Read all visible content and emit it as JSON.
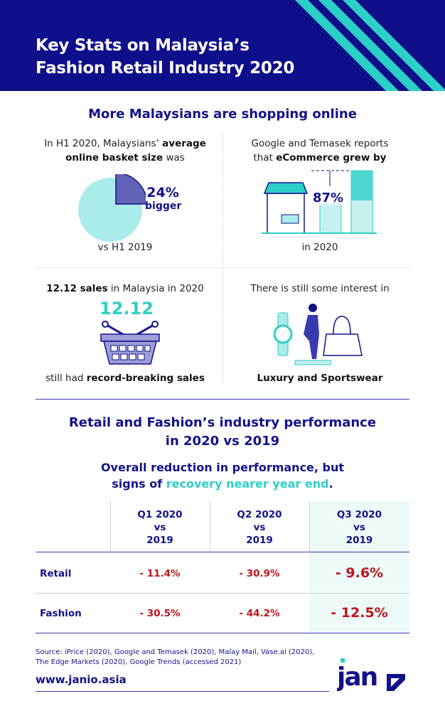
{
  "header": {
    "title_line1": "Key Stats on Malaysia’s",
    "title_line2": "Fashion Retail Industry 2020"
  },
  "section1": {
    "title": "More Malaysians are shopping online",
    "basket": {
      "pre": "In H1 2020, Malaysians’ ",
      "bold1": "average",
      "bold2": "online basket size",
      "post": " was",
      "stat": "24%",
      "stat_label": "bigger",
      "foot": "vs H1 2019",
      "pie_percent": 24
    },
    "ecommerce": {
      "line1": "Google and Temasek reports",
      "pre": "that ",
      "bold": "eCommerce grew by",
      "stat": "87%",
      "foot": "in 2020"
    },
    "sales": {
      "bold": "12.12 sales",
      "rest": " in Malaysia in 2020",
      "badge": "12.12",
      "foot_pre": "still had ",
      "foot_bold": "record-breaking sales"
    },
    "interest": {
      "line": "There is still some interest in",
      "foot": "Luxury and Sportswear"
    }
  },
  "section2": {
    "title_line1": "Retail and Fashion’s industry performance",
    "title_line2": "in 2020 vs 2019",
    "subtitle_line1": "Overall reduction in performance, but",
    "subtitle_pre": "signs of ",
    "subtitle_highlight": "recovery nearer year end",
    "subtitle_post": ".",
    "table": {
      "columns": [
        [
          "Q1 2020",
          "vs",
          "2019"
        ],
        [
          "Q2 2020",
          "vs",
          "2019"
        ],
        [
          "Q3 2020",
          "vs",
          "2019"
        ]
      ],
      "rows": [
        {
          "label": "Retail",
          "values": [
            "- 11.4%",
            "- 30.9%",
            "- 9.6%"
          ]
        },
        {
          "label": "Fashion",
          "values": [
            "- 30.5%",
            "- 44.2%",
            "- 12.5%"
          ]
        }
      ]
    }
  },
  "footer": {
    "source_line1": "Source:  iPrice (2020), Google and Temasek (2020), Malay Mail, Vase.ai (2020),",
    "source_line2": "The Edge Markets (2020), Google Trends (accessed 2021)",
    "url": "www.janio.asia",
    "logo": "janio"
  },
  "colors": {
    "navy": "#0f0f8c",
    "teal": "#2ccfc6",
    "red": "#c0141a",
    "highlight": "#eefafa"
  }
}
